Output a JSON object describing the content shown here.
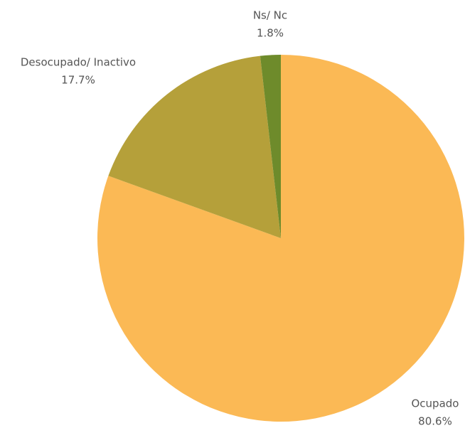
{
  "chart_data": {
    "type": "pie",
    "categories": [
      "Ocupado",
      "Desocupado/ Inactivo",
      "Ns/ Nc"
    ],
    "values": [
      80.6,
      17.7,
      1.8
    ],
    "value_labels": [
      "80.6%",
      "17.7%",
      "1.8%"
    ],
    "colors": [
      "#fbb955",
      "#b5a03a",
      "#6e8b2b"
    ]
  }
}
